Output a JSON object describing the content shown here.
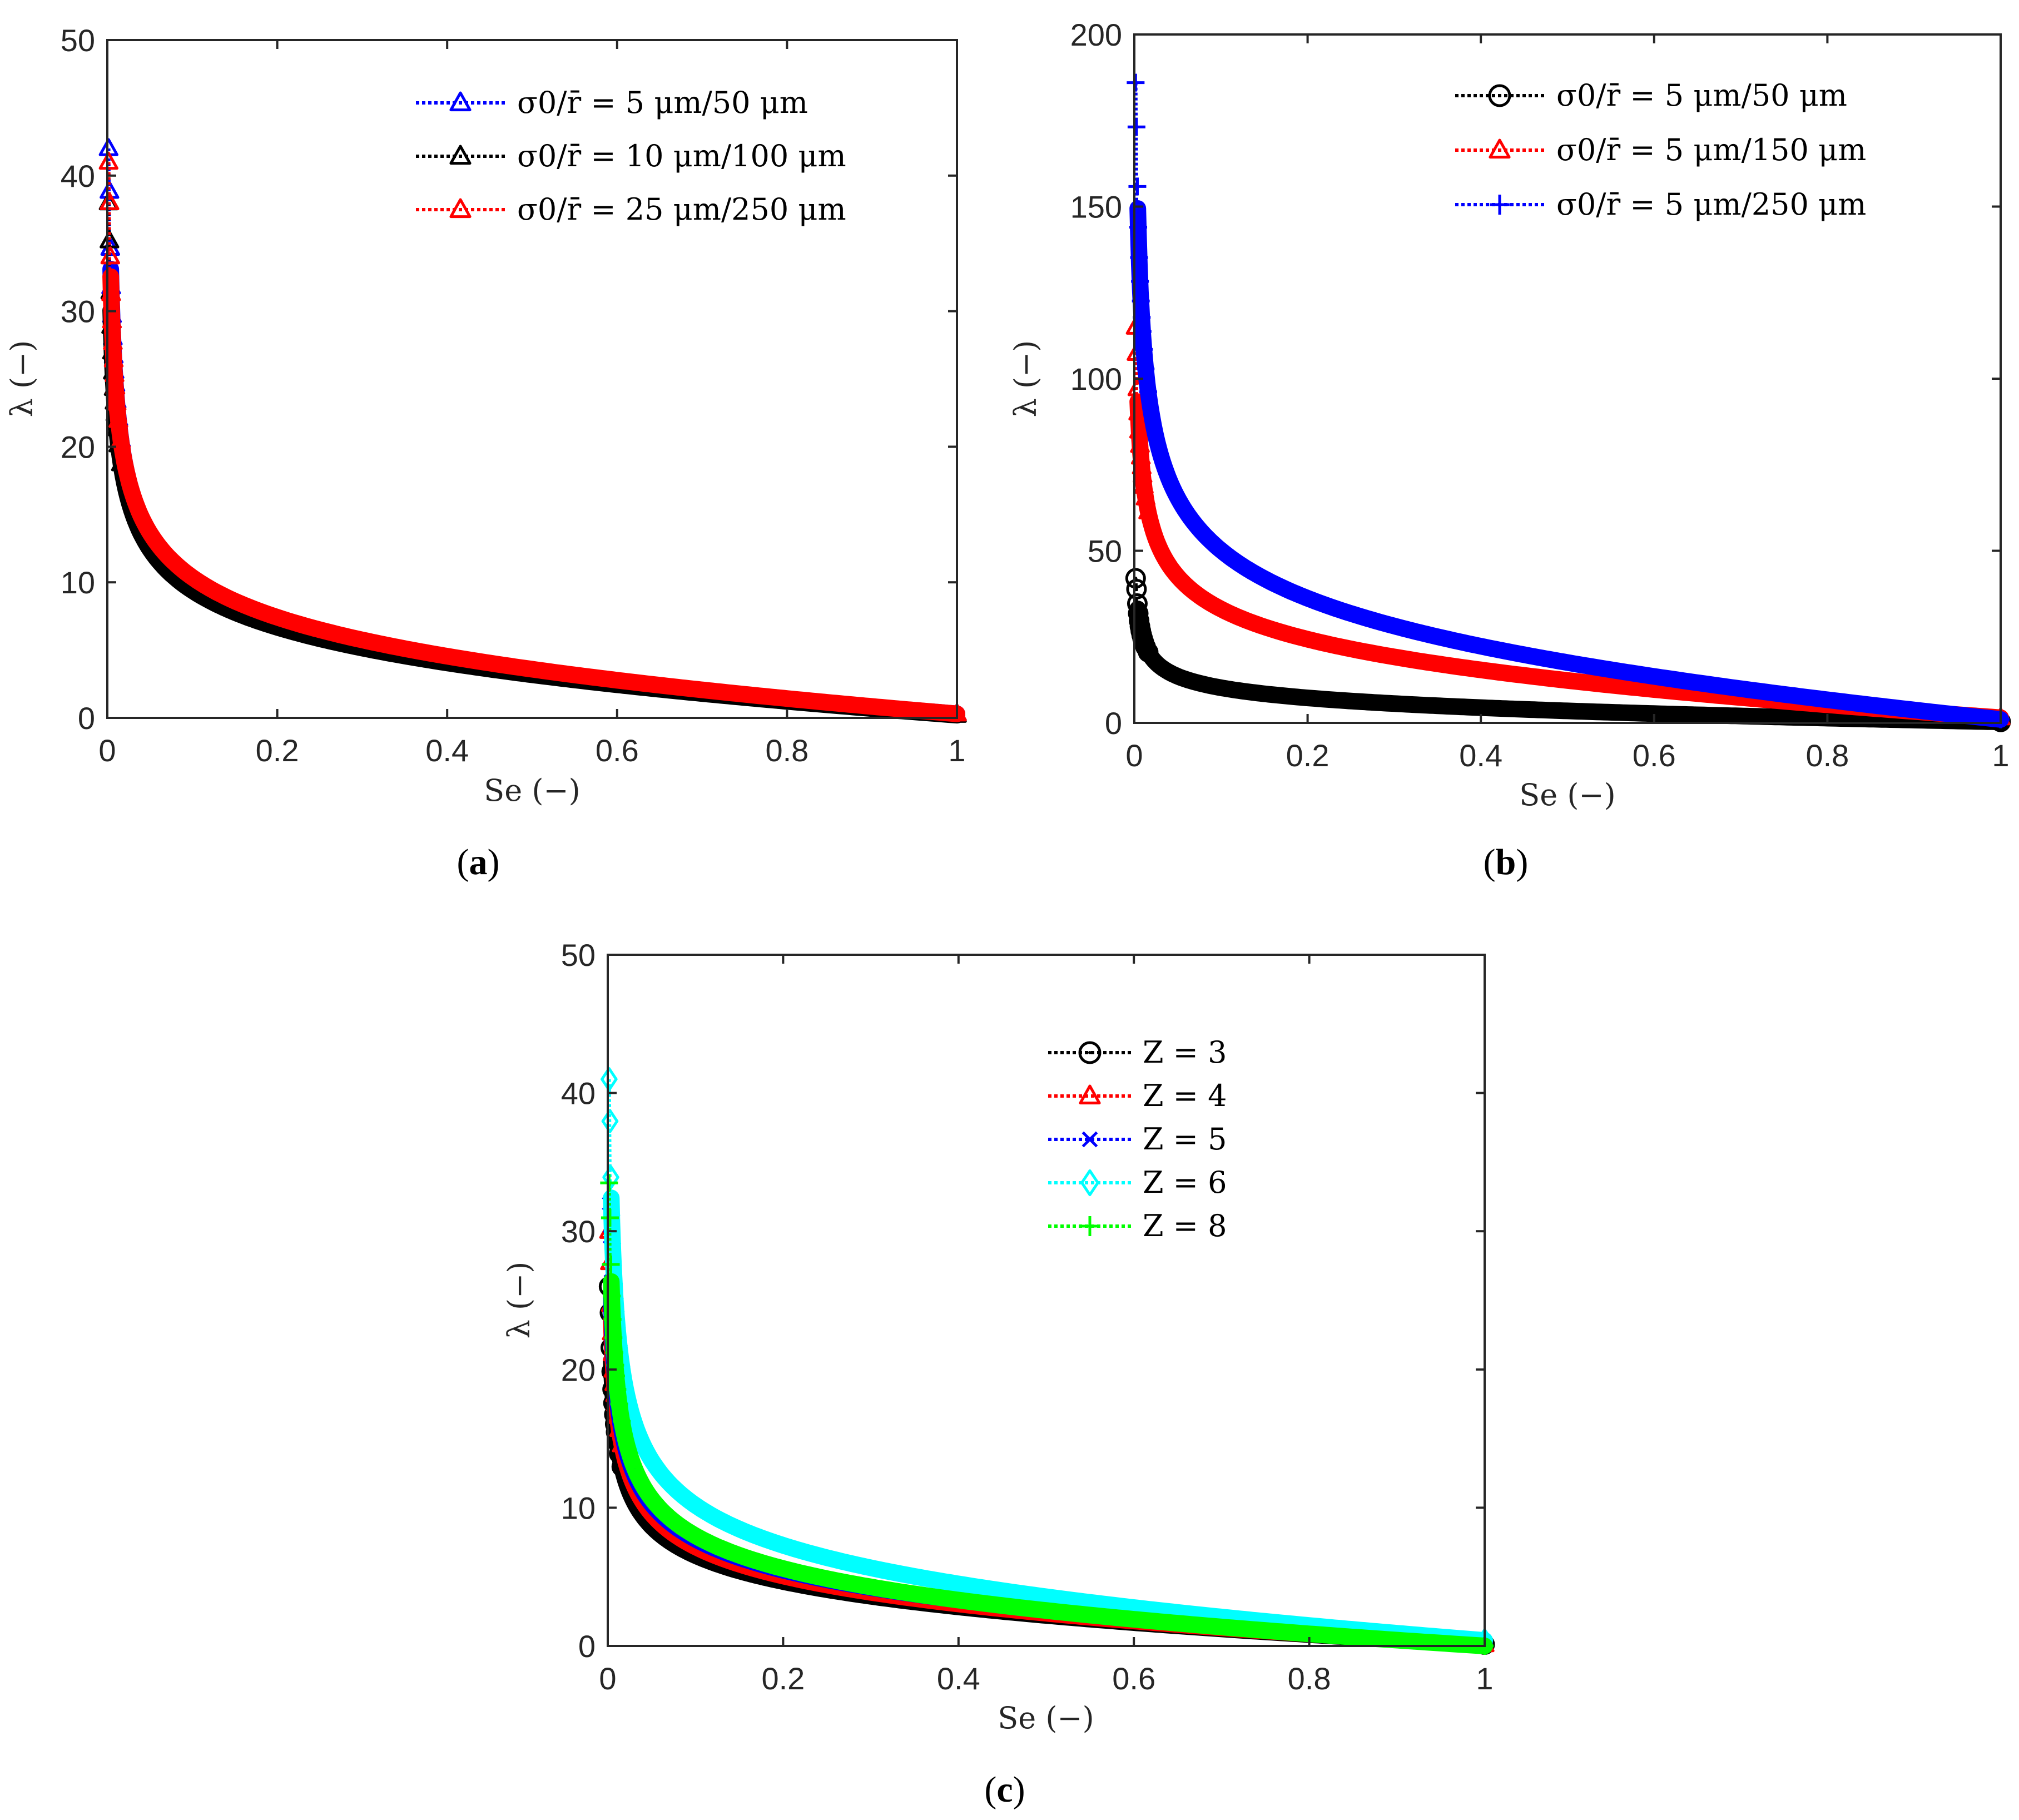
{
  "chart_data": [
    {
      "type": "scatter",
      "panel": "a",
      "caption_letter": "a",
      "xlabel": "Se (−)",
      "ylabel": "λ (−)",
      "xlim": [
        0,
        1
      ],
      "ylim": [
        0,
        50
      ],
      "xticks": [
        "0",
        "0.2",
        "0.4",
        "0.6",
        "0.8",
        "1"
      ],
      "yticks": [
        "0",
        "10",
        "20",
        "30",
        "40",
        "50"
      ],
      "legend_position": "top-right",
      "series": [
        {
          "name": "σ0/r̄ = 5 μm/50 μm",
          "color": "#0000ff",
          "marker": "triangle",
          "lambda_at_min": 42,
          "lambda_at_02": 9.0,
          "lambda_at_1": 0.3
        },
        {
          "name": "σ0/r̄ = 10 μm/100 μm",
          "color": "#000000",
          "marker": "triangle",
          "lambda_at_min": 38,
          "lambda_at_02": 8.3,
          "lambda_at_1": 0.2
        },
        {
          "name": "σ0/r̄ = 25 μm/250 μm",
          "color": "#ff0000",
          "marker": "triangle",
          "lambda_at_min": 41,
          "lambda_at_02": 9.2,
          "lambda_at_1": 0.3
        }
      ]
    },
    {
      "type": "scatter",
      "panel": "b",
      "caption_letter": "b",
      "xlabel": "Se (−)",
      "ylabel": "λ (−)",
      "xlim": [
        0,
        1
      ],
      "ylim": [
        0,
        200
      ],
      "xticks": [
        "0",
        "0.2",
        "0.4",
        "0.6",
        "0.8",
        "1"
      ],
      "yticks": [
        "0",
        "50",
        "100",
        "150",
        "200"
      ],
      "legend_position": "top-right",
      "series": [
        {
          "name": "σ0/r̄ = 5 μm/50 μm",
          "color": "#000000",
          "marker": "circle",
          "lambda_at_min": 42,
          "lambda_at_02": 9.0,
          "lambda_at_1": 0.3
        },
        {
          "name": "σ0/r̄ = 5 μm/150 μm",
          "color": "#ff0000",
          "marker": "triangle",
          "lambda_at_min": 115,
          "lambda_at_02": 30,
          "lambda_at_1": 1.5
        },
        {
          "name": "σ0/r̄ = 5 μm/250 μm",
          "color": "#0000ff",
          "marker": "plus",
          "lambda_at_min": 186,
          "lambda_at_02": 45,
          "lambda_at_1": 1.0
        }
      ]
    },
    {
      "type": "scatter",
      "panel": "c",
      "caption_letter": "c",
      "xlabel": "Se (−)",
      "ylabel": "λ (−)",
      "xlim": [
        0,
        1
      ],
      "ylim": [
        0,
        50
      ],
      "xticks": [
        "0",
        "0.2",
        "0.4",
        "0.6",
        "0.8",
        "1"
      ],
      "yticks": [
        "0",
        "10",
        "20",
        "30",
        "40",
        "50"
      ],
      "legend_position": "top-right",
      "series": [
        {
          "name": "Z = 3",
          "color": "#000000",
          "marker": "circle",
          "lambda_at_min": 26,
          "lambda_at_02": 5.8,
          "lambda_at_1": 0.1
        },
        {
          "name": "Z = 4",
          "color": "#ff0000",
          "marker": "triangle",
          "lambda_at_min": 30,
          "lambda_at_02": 6.3,
          "lambda_at_1": 0.1
        },
        {
          "name": "Z = 5",
          "color": "#0000ff",
          "marker": "x",
          "lambda_at_min": 32,
          "lambda_at_02": 6.8,
          "lambda_at_1": 0.2
        },
        {
          "name": "Z = 6",
          "color": "#00ffff",
          "marker": "diamond",
          "lambda_at_min": 41,
          "lambda_at_02": 9.0,
          "lambda_at_1": 0.4
        },
        {
          "name": "Z = 8",
          "color": "#00ff00",
          "marker": "plus",
          "lambda_at_min": 33.5,
          "lambda_at_02": 7.0,
          "lambda_at_1": 0.0
        }
      ]
    }
  ]
}
